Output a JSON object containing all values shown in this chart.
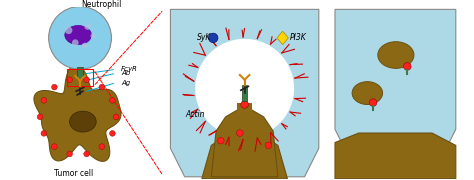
{
  "bg_color": "#ffffff",
  "light_blue": "#ADD8E6",
  "blue_cell_outer": "#87CEEB",
  "blue_cell_inner": "#6AAFE6",
  "purple_nucleus": "#6A0DAD",
  "purple_spots": "#7B68EE",
  "gray_spots": "#B0C4DE",
  "tumor_color": "#8B6914",
  "tumor_dark": "#5C4008",
  "red_dots": "#FF2020",
  "green_rect": "#3A7D44",
  "orange_ab": "#D4820A",
  "dark_body": "#2F2F2F",
  "red_actin": "#CC0000",
  "syk_blue": "#1a3caa",
  "pi3k_yellow": "#FFD700",
  "panel2_bg": "#ADD8E6",
  "white_cup": "#FFFFFF",
  "labels": {
    "neutrophil": "Neutrophil",
    "tumor_cell": "Tumor cell",
    "fcyr": "FcγR",
    "ab": "Ab",
    "ag": "Ag",
    "syk": "SyK",
    "pi3k": "PI3K",
    "actin": "Actin"
  }
}
